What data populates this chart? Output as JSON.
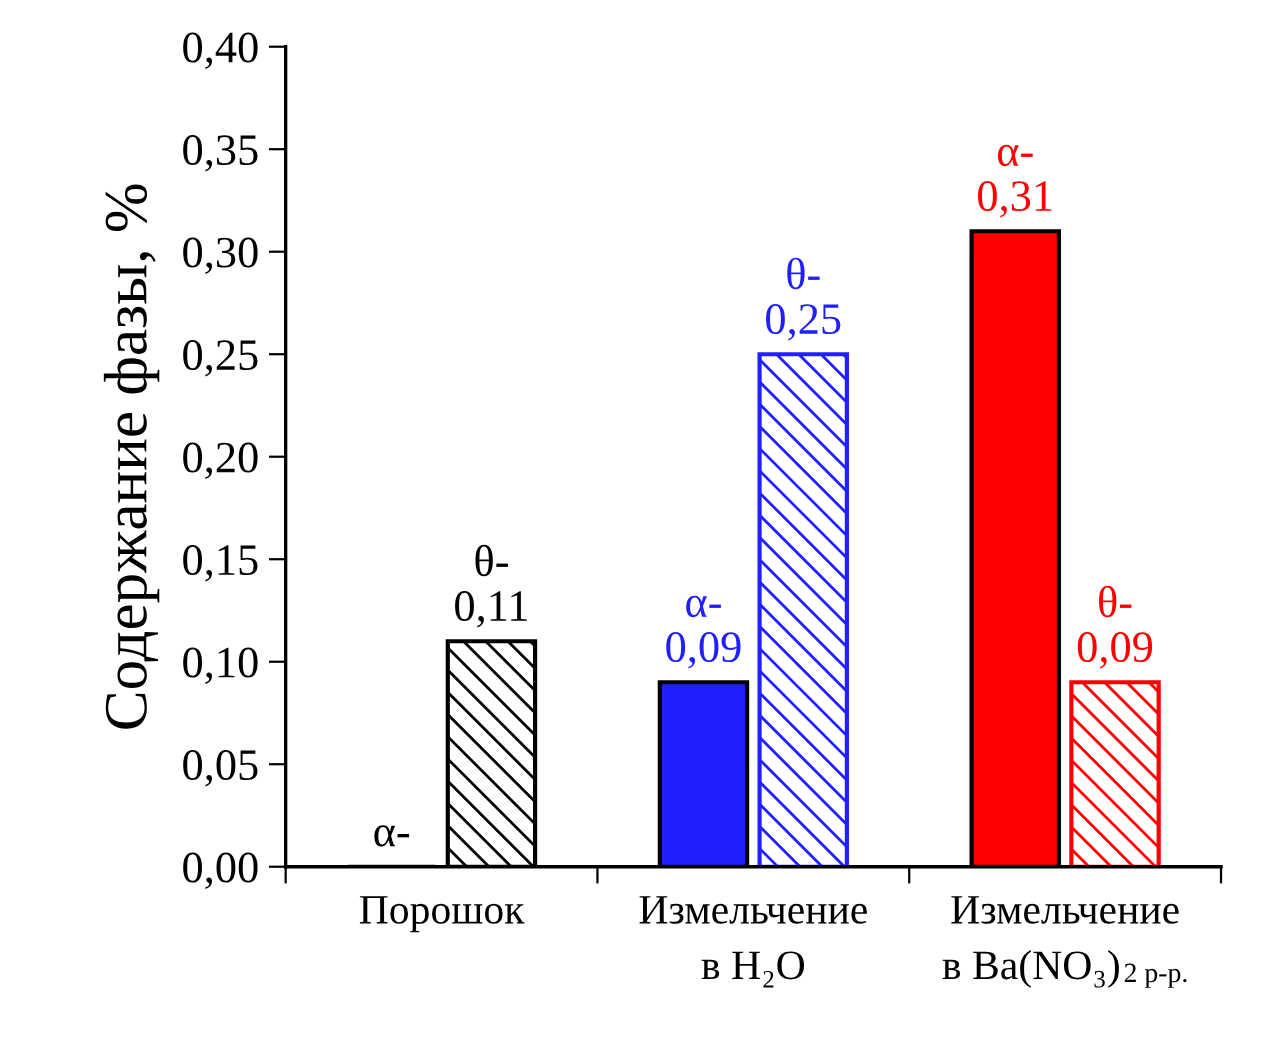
{
  "chart_data": {
    "type": "bar",
    "ylabel": "Содержание фазы, %",
    "categories": [
      "Порошок",
      "Измельчение\nв H₂O",
      "Измельчение\nв Ba(NO₃)$_{2 р-р.}$"
    ],
    "series": [
      {
        "colors": [
          "#000000",
          "#2020ff",
          "#ff0000"
        ],
        "values": [
          0,
          0.09,
          0.31
        ],
        "value_labels": [
          "α-",
          "α-\n0,09",
          "α-\n0,31"
        ]
      },
      {
        "colors": [
          "#000000",
          "#2020ff",
          "#ff0000"
        ],
        "values": [
          0.11,
          0.25,
          0.09
        ],
        "value_labels": [
          "θ-\n0,11",
          "θ-\n0,25",
          "θ-\n0,09"
        ]
      }
    ],
    "ylim": [
      0,
      0.4
    ],
    "yticks": [
      {
        "value": 0,
        "label": "0,00"
      },
      {
        "value": 0.05,
        "label": "0,05"
      },
      {
        "value": 0.1,
        "label": "0,10"
      },
      {
        "value": 0.15,
        "label": "0,15"
      },
      {
        "value": 0.2,
        "label": "0,20"
      },
      {
        "value": 0.25,
        "label": "0,25"
      },
      {
        "value": 0.3,
        "label": "0,30"
      },
      {
        "value": 0.35,
        "label": "0,35"
      },
      {
        "value": 0.4,
        "label": "0,40"
      }
    ],
    "grid": false
  }
}
